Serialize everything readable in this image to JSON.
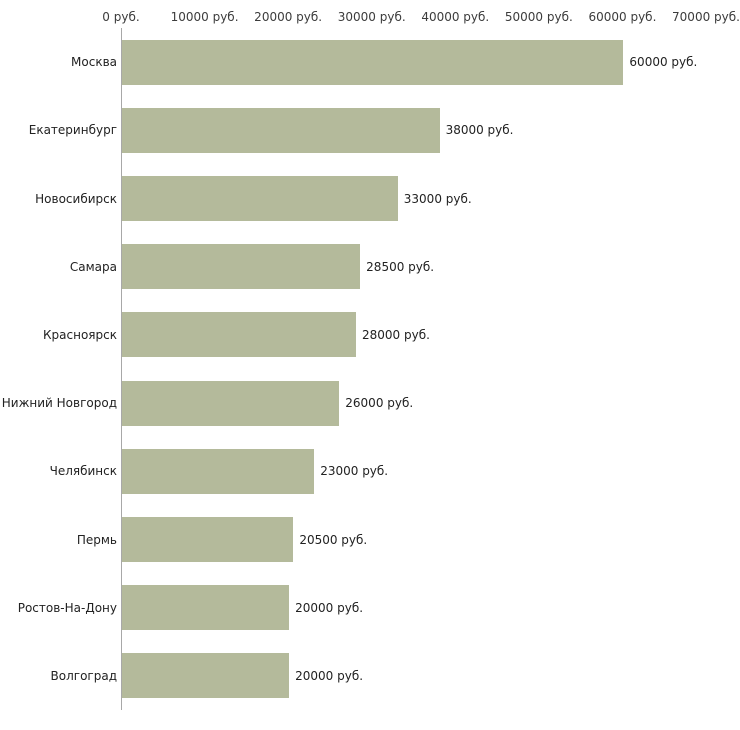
{
  "chart_data": {
    "type": "bar",
    "orientation": "horizontal",
    "title": "",
    "categories": [
      "Москва",
      "Екатеринбург",
      "Новосибирск",
      "Самара",
      "Красноярск",
      "Нижний Новгород",
      "Челябинск",
      "Пермь",
      "Ростов-На-Дону",
      "Волгоград"
    ],
    "values": [
      60000,
      38000,
      33000,
      28500,
      28000,
      26000,
      23000,
      20500,
      20000,
      20000
    ],
    "value_labels": [
      "60000 руб.",
      "38000 руб.",
      "33000 руб.",
      "28500 руб.",
      "28000 руб.",
      "26000 руб.",
      "23000 руб.",
      "20500 руб.",
      "20000 руб.",
      "20000 руб."
    ],
    "x_axis": {
      "position": "top",
      "min": 0,
      "max": 70000,
      "ticks": [
        0,
        10000,
        20000,
        30000,
        40000,
        50000,
        60000,
        70000
      ],
      "tick_labels": [
        "0 руб.",
        "10000 руб.",
        "20000 руб.",
        "30000 руб.",
        "40000 руб.",
        "50000 руб.",
        "60000 руб.",
        "70000 руб."
      ]
    },
    "style": {
      "bar_color": "#b4ba9b",
      "background": "#ffffff",
      "axis_line_color": "#a8a8a8"
    },
    "grid": false,
    "legend": false
  }
}
